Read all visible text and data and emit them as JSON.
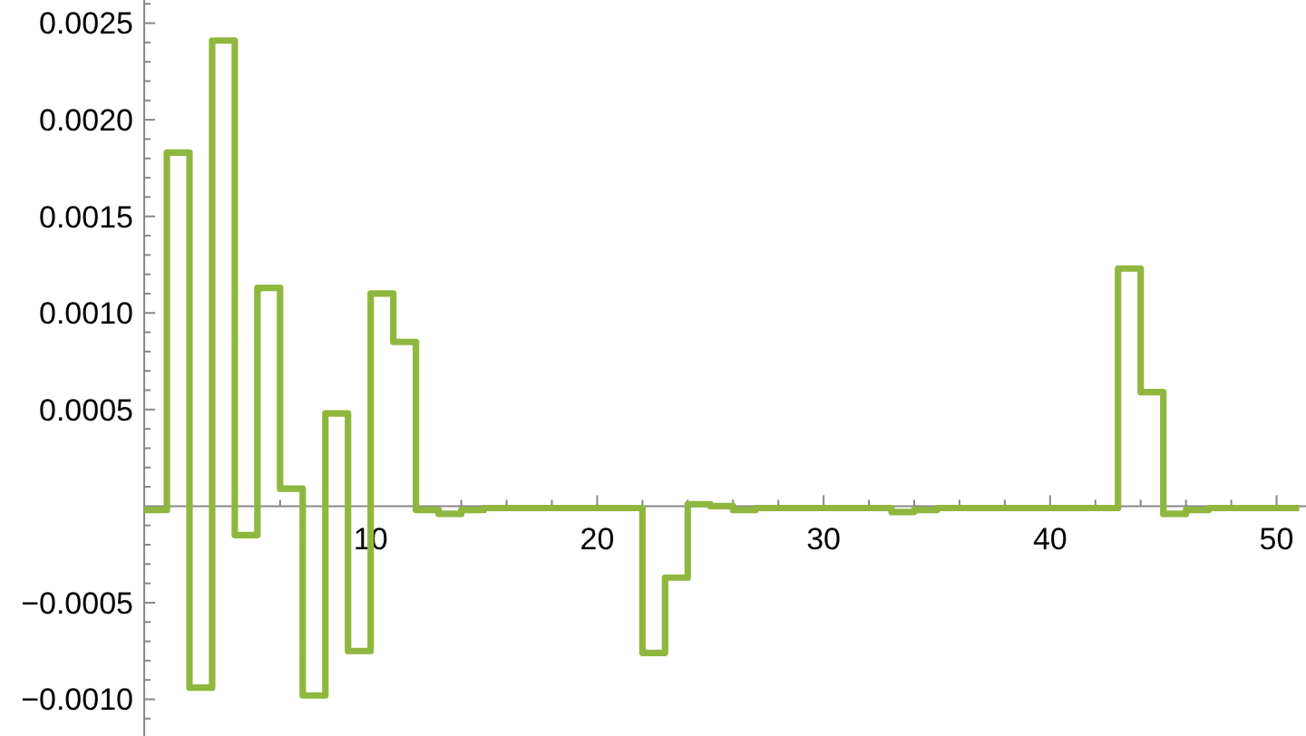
{
  "chart_data": {
    "type": "step",
    "x": [
      0,
      1,
      2,
      3,
      4,
      5,
      6,
      7,
      8,
      9,
      10,
      11,
      12,
      13,
      14,
      15,
      16,
      17,
      18,
      19,
      20,
      21,
      22,
      23,
      24,
      25,
      26,
      27,
      28,
      29,
      30,
      31,
      32,
      33,
      34,
      35,
      36,
      37,
      38,
      39,
      40,
      41,
      42,
      43,
      44,
      45,
      46,
      47,
      48,
      49,
      50,
      51
    ],
    "series": [
      {
        "color": "#8fb73e",
        "values": [
          -2e-05,
          0.00183,
          -0.00094,
          0.00241,
          -0.00015,
          0.00113,
          9e-05,
          -0.00098,
          0.00048,
          -0.00075,
          0.0011,
          0.00085,
          -2e-05,
          -4e-05,
          -2e-05,
          -1e-05,
          -1e-05,
          -1e-05,
          -1e-05,
          -1e-05,
          -1e-05,
          -1e-05,
          -0.00076,
          -0.00037,
          1e-05,
          0,
          -2e-05,
          -1e-05,
          -1e-05,
          -1e-05,
          -1e-05,
          -1e-05,
          -1e-05,
          -3e-05,
          -2e-05,
          -1e-05,
          -1e-05,
          -1e-05,
          -1e-05,
          -1e-05,
          -1e-05,
          -1e-05,
          -1e-05,
          0.00123,
          0.00059,
          -4e-05,
          -2e-05,
          -1e-05,
          -1e-05,
          -1e-05,
          -1e-05,
          -1e-05
        ]
      }
    ],
    "xlim": [
      0,
      51.3
    ],
    "ylim": [
      -0.00119,
      0.00262
    ],
    "xticks": [
      {
        "value": 2,
        "label": null
      },
      {
        "value": 4,
        "label": null
      },
      {
        "value": 6,
        "label": null
      },
      {
        "value": 8,
        "label": null
      },
      10,
      {
        "value": 12,
        "label": null
      },
      {
        "value": 14,
        "label": null
      },
      {
        "value": 16,
        "label": null
      },
      {
        "value": 18,
        "label": null
      },
      20,
      {
        "value": 22,
        "label": null
      },
      {
        "value": 24,
        "label": null
      },
      {
        "value": 26,
        "label": null
      },
      {
        "value": 28,
        "label": null
      },
      30,
      {
        "value": 32,
        "label": null
      },
      {
        "value": 34,
        "label": null
      },
      {
        "value": 36,
        "label": null
      },
      {
        "value": 38,
        "label": null
      },
      40,
      {
        "value": 42,
        "label": null
      },
      {
        "value": 44,
        "label": null
      },
      {
        "value": 46,
        "label": null
      },
      {
        "value": 48,
        "label": null
      },
      50
    ],
    "yticks": [
      {
        "value": -0.0011,
        "label": null
      },
      {
        "value": -0.001,
        "label": "−0.0010"
      },
      {
        "value": -0.0009,
        "label": null
      },
      {
        "value": -0.0008,
        "label": null
      },
      {
        "value": -0.0007,
        "label": null
      },
      {
        "value": -0.0006,
        "label": null
      },
      {
        "value": -0.0005,
        "label": "−0.0005"
      },
      {
        "value": -0.0004,
        "label": null
      },
      {
        "value": -0.0003,
        "label": null
      },
      {
        "value": -0.0002,
        "label": null
      },
      {
        "value": -0.0001,
        "label": null
      },
      {
        "value": 0.0001,
        "label": null
      },
      {
        "value": 0.0002,
        "label": null
      },
      {
        "value": 0.0003,
        "label": null
      },
      {
        "value": 0.0004,
        "label": null
      },
      {
        "value": 0.0005,
        "label": "0.0005"
      },
      {
        "value": 0.0006,
        "label": null
      },
      {
        "value": 0.0007,
        "label": null
      },
      {
        "value": 0.0008,
        "label": null
      },
      {
        "value": 0.0009,
        "label": null
      },
      {
        "value": 0.001,
        "label": "0.0010"
      },
      {
        "value": 0.0011,
        "label": null
      },
      {
        "value": 0.0012,
        "label": null
      },
      {
        "value": 0.0013,
        "label": null
      },
      {
        "value": 0.0014,
        "label": null
      },
      {
        "value": 0.0015,
        "label": "0.0015"
      },
      {
        "value": 0.0016,
        "label": null
      },
      {
        "value": 0.0017,
        "label": null
      },
      {
        "value": 0.0018,
        "label": null
      },
      {
        "value": 0.0019,
        "label": null
      },
      {
        "value": 0.002,
        "label": "0.0020"
      },
      {
        "value": 0.0021,
        "label": null
      },
      {
        "value": 0.0022,
        "label": null
      },
      {
        "value": 0.0023,
        "label": null
      },
      {
        "value": 0.0024,
        "label": null
      },
      {
        "value": 0.0025,
        "label": "0.0025"
      },
      {
        "value": 0.0026,
        "label": null
      }
    ]
  }
}
